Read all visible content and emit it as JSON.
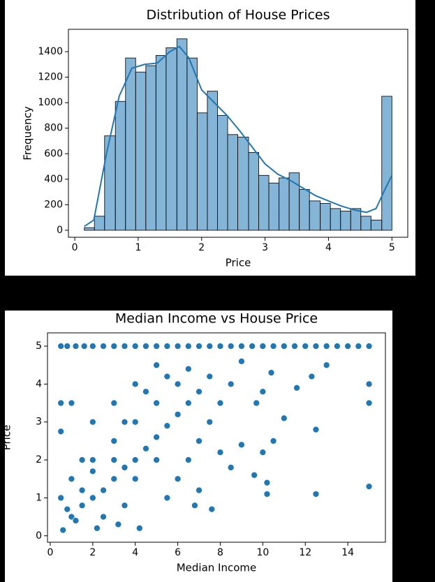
{
  "chart_data": [
    {
      "type": "histogram",
      "title": "Distribution of House Prices",
      "x_label": "Price",
      "y_label": "Frequency",
      "color": "#1f77b4",
      "bins": [
        0.15,
        0.31,
        0.47,
        0.64,
        0.8,
        0.96,
        1.12,
        1.28,
        1.44,
        1.61,
        1.77,
        1.93,
        2.09,
        2.25,
        2.41,
        2.57,
        2.74,
        2.9,
        3.06,
        3.22,
        3.38,
        3.54,
        3.7,
        3.87,
        4.03,
        4.19,
        4.35,
        4.51,
        4.67,
        4.84,
        5.0
      ],
      "values": [
        20,
        110,
        740,
        1010,
        1350,
        1240,
        1290,
        1370,
        1430,
        1500,
        1350,
        920,
        1090,
        900,
        750,
        730,
        610,
        430,
        370,
        410,
        450,
        320,
        230,
        210,
        170,
        150,
        170,
        110,
        80,
        1050
      ],
      "kde": {
        "x": [
          0.15,
          0.3,
          0.5,
          0.7,
          0.9,
          1.1,
          1.3,
          1.5,
          1.65,
          1.8,
          2.0,
          2.2,
          2.4,
          2.6,
          2.8,
          3.0,
          3.2,
          3.4,
          3.6,
          3.8,
          4.0,
          4.2,
          4.4,
          4.6,
          4.75,
          4.9,
          5.0
        ],
        "values": [
          30,
          80,
          600,
          1050,
          1270,
          1300,
          1310,
          1400,
          1440,
          1350,
          1100,
          1000,
          900,
          780,
          650,
          520,
          440,
          390,
          330,
          270,
          230,
          190,
          160,
          140,
          170,
          330,
          430
        ]
      },
      "xlim": [
        -0.1,
        5.25
      ],
      "ylim": [
        -55,
        1575
      ],
      "xticks": [
        0,
        1,
        2,
        3,
        4,
        5
      ],
      "yticks": [
        0,
        200,
        400,
        600,
        800,
        1000,
        1200,
        1400
      ]
    },
    {
      "type": "scatter",
      "title": "Median Income vs House Price",
      "x_label": "Median Income",
      "y_label": "Price",
      "color": "#1f77b4",
      "x": [
        0.5,
        0.8,
        1.2,
        1.6,
        2.0,
        2.5,
        3,
        3.5,
        4,
        4.5,
        5,
        5.5,
        6,
        6.5,
        7,
        7.5,
        8,
        8.5,
        9,
        9.5,
        10,
        10.5,
        11,
        11.5,
        12,
        12.5,
        13,
        13.5,
        14,
        14.5,
        15,
        1,
        1.5,
        2,
        2.5,
        3,
        3.5,
        4,
        4.5,
        5,
        5.5,
        6,
        6.5,
        7,
        2,
        3,
        4,
        5,
        6,
        1,
        1.5,
        2,
        3,
        4,
        5,
        1,
        0.5,
        0.5,
        0.5,
        0.8,
        1.2,
        2.5,
        3.5,
        4.2,
        5.5,
        6,
        6.5,
        7,
        7.5,
        8,
        8.5,
        3,
        4,
        5,
        2,
        1.5,
        3.5,
        4.5,
        5.5,
        6.5,
        7.5,
        8,
        8.5,
        9,
        7.6,
        9.7,
        9.6,
        10,
        10.2,
        10.2,
        10.5,
        11,
        11.6,
        12.3,
        12.5,
        12.5,
        13,
        15,
        15,
        15,
        10,
        10.4,
        9,
        7,
        6.8,
        3.2,
        2.2,
        0.6
      ],
      "values": [
        5,
        5,
        5,
        5,
        5,
        5,
        5,
        5,
        5,
        5,
        5,
        5,
        5,
        5,
        5,
        5,
        5,
        5,
        5,
        5,
        5,
        5,
        5,
        5,
        5,
        5,
        5,
        5,
        5,
        5,
        5,
        0.5,
        0.8,
        1,
        1.2,
        1.5,
        1.8,
        2,
        2.3,
        2.6,
        2.9,
        3.2,
        3.5,
        3.8,
        2,
        2.5,
        3,
        3.5,
        4,
        1.5,
        2,
        3,
        3.5,
        4,
        4.5,
        3.5,
        3.5,
        2.75,
        1,
        0.7,
        0.4,
        0.5,
        0.8,
        0.2,
        1,
        1.5,
        2,
        2.5,
        3,
        3.5,
        4,
        2,
        1.5,
        2,
        1.7,
        1.2,
        3,
        3.8,
        4.2,
        4.4,
        4.2,
        2.2,
        1.8,
        2.4,
        0.7,
        3.5,
        1.6,
        2.2,
        1.4,
        1.1,
        2.5,
        3.1,
        3.9,
        4.2,
        2.8,
        1.1,
        4.5,
        4,
        3.5,
        1.3,
        3.8,
        4.3,
        4.6,
        1.2,
        0.8,
        0.3,
        0.2,
        0.15
      ],
      "xlim": [
        -0.13,
        15.77
      ],
      "ylim": [
        -0.17,
        5.35
      ],
      "xticks": [
        0,
        2,
        4,
        6,
        8,
        10,
        12,
        14
      ],
      "yticks": [
        0,
        1,
        2,
        3,
        4,
        5
      ]
    }
  ]
}
